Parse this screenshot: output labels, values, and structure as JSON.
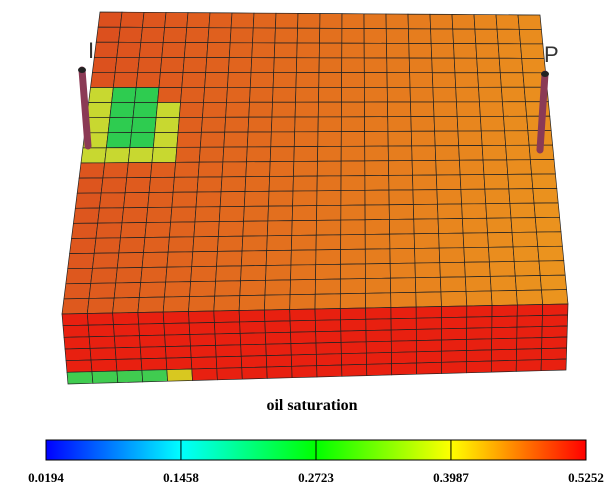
{
  "wells": [
    {
      "label": "I"
    },
    {
      "label": "P"
    }
  ],
  "colorbar": {
    "title": "oil saturation",
    "range": [
      0.0194,
      0.5252
    ],
    "ticks": [
      0.0194,
      0.1458,
      0.2723,
      0.3987,
      0.5252
    ]
  }
}
